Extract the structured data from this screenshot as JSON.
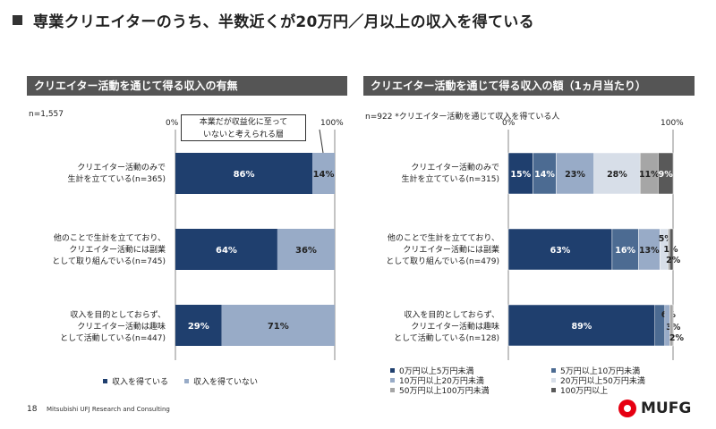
{
  "title": "専業クリエイターのうち、半数近くが20万円／月以上の収入を得ている",
  "left_panel": {
    "header": "クリエイター活動を通じて得る収入の有無",
    "n_label": "n=1,557",
    "axis_start": "0%",
    "axis_end": "100%",
    "callout": [
      "本業だが収益化に至って",
      "いないと考えられる層"
    ],
    "categories": [
      [
        "クリエイター活動のみで",
        "生計を立てている(n=365)"
      ],
      [
        "他のことで生計を立てており、",
        "クリエイター活動には副業",
        "として取り組んでいる(n=745)"
      ],
      [
        "収入を目的としておらず、",
        "クリエイター活動は趣味",
        "として活動している(n=447)"
      ]
    ],
    "legend": [
      "収入を得ている",
      "収入を得ていない"
    ]
  },
  "right_panel": {
    "header": "クリエイター活動を通じて得る収入の額（1ヵ月当たり）",
    "n_label": "n=922 *クリエイター活動を通じて収入を得ている人",
    "axis_start": "0%",
    "axis_end": "100%",
    "categories": [
      [
        "クリエイター活動のみで",
        "生計を立てている(n=315)"
      ],
      [
        "他のことで生計を立てており、",
        "クリエイター活動には副業",
        "として取り組んでいる(n=479)"
      ],
      [
        "収入を目的としておらず、",
        "クリエイター活動は趣味",
        "として活動している(n=128)"
      ]
    ],
    "legend": [
      "0万円以上5万円未満",
      "5万円以上10万円未満",
      "10万円以上20万円未満",
      "20万円以上50万円未満",
      "50万円以上100万円未満",
      "100万円以上"
    ]
  },
  "chart_data": [
    {
      "type": "bar",
      "orientation": "horizontal",
      "stacked": true,
      "title": "クリエイター活動を通じて得る収入の有無",
      "categories": [
        "クリエイター活動のみで生計を立てている(n=365)",
        "他のことで生計を立てており、クリエイター活動には副業として取り組んでいる(n=745)",
        "収入を目的としておらず、クリエイター活動は趣味として活動している(n=447)"
      ],
      "series": [
        {
          "name": "収入を得ている",
          "values": [
            86,
            64,
            29
          ],
          "color": "#1f3f6e"
        },
        {
          "name": "収入を得ていない",
          "values": [
            14,
            36,
            71
          ],
          "color": "#98abc7"
        }
      ],
      "xlim": [
        0,
        100
      ],
      "legend_position": "bottom"
    },
    {
      "type": "bar",
      "orientation": "horizontal",
      "stacked": true,
      "title": "クリエイター活動を通じて得る収入の額（1ヵ月当たり）",
      "categories": [
        "クリエイター活動のみで生計を立てている(n=315)",
        "他のことで生計を立てており、クリエイター活動には副業として取り組んでいる(n=479)",
        "収入を目的としておらず、クリエイター活動は趣味として活動している(n=128)"
      ],
      "series": [
        {
          "name": "0万円以上5万円未満",
          "values": [
            15,
            63,
            89
          ],
          "color": "#1f3f6e"
        },
        {
          "name": "5万円以上10万円未満",
          "values": [
            14,
            16,
            6
          ],
          "color": "#4c6b92"
        },
        {
          "name": "10万円以上20万円未満",
          "values": [
            23,
            13,
            3
          ],
          "color": "#98abc7"
        },
        {
          "name": "20万円以上50万円未満",
          "values": [
            28,
            5,
            0
          ],
          "color": "#d7dee8"
        },
        {
          "name": "50万円以上100万円未満",
          "values": [
            11,
            1,
            2
          ],
          "color": "#a6a6a6"
        },
        {
          "name": "100万円以上",
          "values": [
            9,
            2,
            0
          ],
          "color": "#595959"
        }
      ],
      "value_labels": [
        [
          "15%",
          "14%",
          "23%",
          "28%",
          "11%",
          "9%"
        ],
        [
          "63%",
          "16%",
          "13%",
          "5%",
          "1%",
          "2%"
        ],
        [
          "89%",
          "6%",
          "3%",
          "",
          "2%",
          ""
        ]
      ],
      "xlim": [
        0,
        100
      ],
      "legend_position": "bottom"
    }
  ],
  "footer": {
    "page_number": "18",
    "company": "Mitsubishi UFJ Research and Consulting",
    "logo_text": "MUFG",
    "logo_color": "#e60012"
  }
}
